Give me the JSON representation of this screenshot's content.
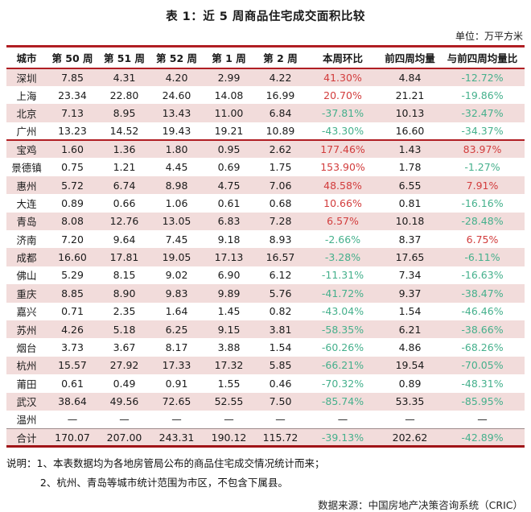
{
  "title": "表 1：近 5 周商品住宅成交面积比较",
  "unit_label": "单位：万平方米",
  "table": {
    "columns": [
      "城市",
      "第 50 周",
      "第 51 周",
      "第 52 周",
      "第 1 周",
      "第 2 周",
      "本周环比",
      "前四周均量",
      "与前四周均量比"
    ],
    "section_break_city": "宝鸡",
    "rows": [
      [
        "深圳",
        "7.85",
        "4.31",
        "4.20",
        "2.99",
        "4.22",
        "41.30%",
        "4.84",
        "-12.72%"
      ],
      [
        "上海",
        "23.34",
        "22.80",
        "24.60",
        "14.08",
        "16.99",
        "20.70%",
        "21.21",
        "-19.86%"
      ],
      [
        "北京",
        "7.13",
        "8.95",
        "13.43",
        "11.00",
        "6.84",
        "-37.81%",
        "10.13",
        "-32.47%"
      ],
      [
        "广州",
        "13.23",
        "14.52",
        "19.43",
        "19.21",
        "10.89",
        "-43.30%",
        "16.60",
        "-34.37%"
      ],
      [
        "宝鸡",
        "1.60",
        "1.36",
        "1.80",
        "0.95",
        "2.62",
        "177.46%",
        "1.43",
        "83.97%"
      ],
      [
        "景德镇",
        "0.75",
        "1.21",
        "4.45",
        "0.69",
        "1.75",
        "153.90%",
        "1.78",
        "-1.27%"
      ],
      [
        "惠州",
        "5.72",
        "6.74",
        "8.98",
        "4.75",
        "7.06",
        "48.58%",
        "6.55",
        "7.91%"
      ],
      [
        "大连",
        "0.89",
        "0.66",
        "1.06",
        "0.61",
        "0.68",
        "10.66%",
        "0.81",
        "-16.16%"
      ],
      [
        "青岛",
        "8.08",
        "12.76",
        "13.05",
        "6.83",
        "7.28",
        "6.57%",
        "10.18",
        "-28.48%"
      ],
      [
        "济南",
        "7.20",
        "9.64",
        "7.45",
        "9.18",
        "8.93",
        "-2.66%",
        "8.37",
        "6.75%"
      ],
      [
        "成都",
        "16.60",
        "17.81",
        "19.05",
        "17.13",
        "16.57",
        "-3.28%",
        "17.65",
        "-6.11%"
      ],
      [
        "佛山",
        "5.29",
        "8.15",
        "9.02",
        "6.90",
        "6.12",
        "-11.31%",
        "7.34",
        "-16.63%"
      ],
      [
        "重庆",
        "8.85",
        "8.90",
        "9.83",
        "9.89",
        "5.76",
        "-41.72%",
        "9.37",
        "-38.47%"
      ],
      [
        "嘉兴",
        "0.71",
        "2.35",
        "1.64",
        "1.45",
        "0.82",
        "-43.04%",
        "1.54",
        "-46.46%"
      ],
      [
        "苏州",
        "4.26",
        "5.18",
        "6.25",
        "9.15",
        "3.81",
        "-58.35%",
        "6.21",
        "-38.66%"
      ],
      [
        "烟台",
        "3.73",
        "3.67",
        "8.17",
        "3.88",
        "1.54",
        "-60.26%",
        "4.86",
        "-68.26%"
      ],
      [
        "杭州",
        "15.57",
        "27.92",
        "17.33",
        "17.32",
        "5.85",
        "-66.21%",
        "19.54",
        "-70.05%"
      ],
      [
        "莆田",
        "0.61",
        "0.49",
        "0.91",
        "1.55",
        "0.46",
        "-70.32%",
        "0.89",
        "-48.31%"
      ],
      [
        "武汉",
        "38.64",
        "49.56",
        "72.65",
        "52.55",
        "7.50",
        "-85.74%",
        "53.35",
        "-85.95%"
      ],
      [
        "温州",
        "—",
        "—",
        "—",
        "—",
        "—",
        "—",
        "—",
        "—"
      ]
    ],
    "total": [
      "合计",
      "170.07",
      "207.00",
      "243.31",
      "190.12",
      "115.72",
      "-39.13%",
      "202.62",
      "-42.89%"
    ]
  },
  "notes": {
    "line1": "说明：1、本表数据均为各地房管局公布的商品住宅成交情况统计而来；",
    "line2": "2、杭州、青岛等城市统计范围为市区，不包含下属县。"
  },
  "source": "数据来源：中国房地产决策咨询系统（CRIC）",
  "colors": {
    "positive_red": "#d23c3c",
    "negative_green": "#45b08c",
    "stripe_pink": "#f2dcdb",
    "line_red": "#b01e23"
  }
}
